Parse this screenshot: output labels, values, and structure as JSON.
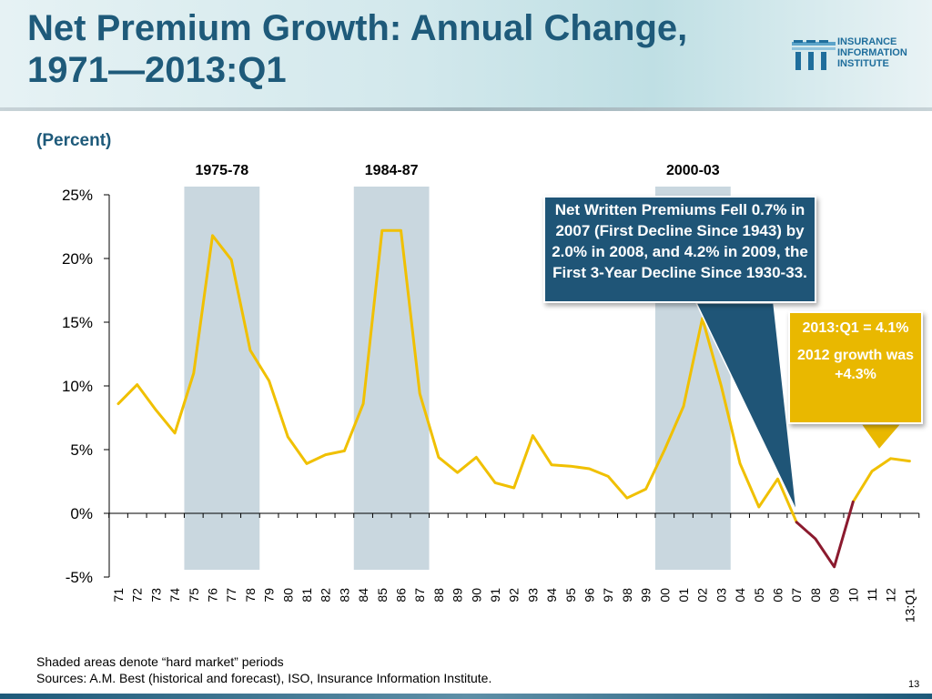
{
  "header": {
    "title_line1": "Net Premium Growth: Annual Change,",
    "title_line2": "1971—2013:Q1",
    "logo_lines": [
      "INSURANCE",
      "INFORMATION",
      "INSTITUTE"
    ]
  },
  "unit_label": "(Percent)",
  "chart_data": {
    "type": "line",
    "y_unit": "percent",
    "ylim": [
      -5,
      25
    ],
    "yticks": [
      "25%",
      "20%",
      "15%",
      "10%",
      "5%",
      "0%",
      "-5%"
    ],
    "categories": [
      "71",
      "72",
      "73",
      "74",
      "75",
      "76",
      "77",
      "78",
      "79",
      "80",
      "81",
      "82",
      "83",
      "84",
      "85",
      "86",
      "87",
      "88",
      "89",
      "90",
      "91",
      "92",
      "93",
      "94",
      "95",
      "96",
      "97",
      "98",
      "99",
      "00",
      "01",
      "02",
      "03",
      "04",
      "05",
      "06",
      "07",
      "08",
      "09",
      "10",
      "11",
      "12",
      "13:Q1"
    ],
    "series": [
      {
        "color": "#f0c000",
        "values": [
          8.6,
          10.1,
          8.1,
          6.3,
          11.0,
          21.8,
          19.9,
          12.8,
          10.4,
          6.0,
          3.9,
          4.6,
          4.9,
          8.6,
          22.2,
          22.2,
          9.4,
          4.4,
          3.2,
          4.4,
          2.4,
          2.0,
          6.1,
          3.8,
          3.7,
          3.5,
          2.9,
          1.2,
          1.9,
          5.0,
          8.4,
          15.3,
          10.0,
          3.9,
          0.5,
          2.7,
          -0.7,
          null,
          null,
          0.9,
          3.3,
          4.3,
          4.1
        ]
      },
      {
        "color": "#8b1a2e",
        "values": [
          null,
          null,
          null,
          null,
          null,
          null,
          null,
          null,
          null,
          null,
          null,
          null,
          null,
          null,
          null,
          null,
          null,
          null,
          null,
          null,
          null,
          null,
          null,
          null,
          null,
          null,
          null,
          null,
          null,
          null,
          null,
          null,
          null,
          null,
          null,
          null,
          -0.7,
          -2.0,
          -4.2,
          0.9,
          null,
          null,
          null
        ]
      }
    ],
    "shaded_periods": [
      {
        "label": "1975-78",
        "from": "75",
        "to": "78"
      },
      {
        "label": "1984-87",
        "from": "84",
        "to": "87"
      },
      {
        "label": "2000-03",
        "from": "00",
        "to": "03"
      }
    ],
    "shade_color": "#c9d7df",
    "line_color": "#f0c000",
    "decline_color": "#8b1a2e"
  },
  "callouts": {
    "blue": {
      "text": "Net Written Premiums Fell 0.7% in 2007 (First Decline Since 1943) by 2.0% in 2008, and 4.2% in 2009, the First 3-Year Decline Since 1930-33.",
      "color": "#1f5577"
    },
    "gold": {
      "line1": "2013:Q1 = 4.1%",
      "line2": "2012 growth was +4.3%",
      "color": "#e9b800"
    }
  },
  "footnote": {
    "line1": "Shaded areas denote “hard market” periods",
    "line2": "Sources:  A.M. Best (historical and forecast), ISO, Insurance Information Institute."
  },
  "page_number": "13"
}
